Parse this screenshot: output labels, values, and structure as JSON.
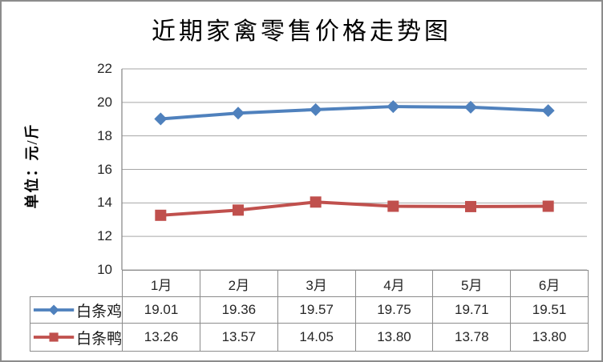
{
  "chart_data": {
    "type": "line",
    "title": "近期家禽零售价格走势图",
    "xlabel": "",
    "ylabel": "单位：元/斤",
    "categories": [
      "1月",
      "2月",
      "3月",
      "4月",
      "5月",
      "6月"
    ],
    "series": [
      {
        "name": "白条鸡",
        "values": [
          19.01,
          19.36,
          19.57,
          19.75,
          19.71,
          19.51
        ],
        "color": "#4F81BD",
        "marker": "diamond"
      },
      {
        "name": "白条鸭",
        "values": [
          13.26,
          13.57,
          14.05,
          13.8,
          13.78,
          13.8
        ],
        "color": "#C0504D",
        "marker": "square"
      }
    ],
    "ylim": [
      10,
      22
    ],
    "yticks": [
      22,
      20,
      18,
      16,
      14,
      12,
      10
    ],
    "grid": true,
    "legend_position": "data-table-left",
    "colors": {
      "gridline": "#A6A6A6",
      "axis": "#8C8C8C",
      "table_border": "#8C8C8C",
      "frame_border": "#8C8C8C",
      "text": "#262626"
    }
  }
}
